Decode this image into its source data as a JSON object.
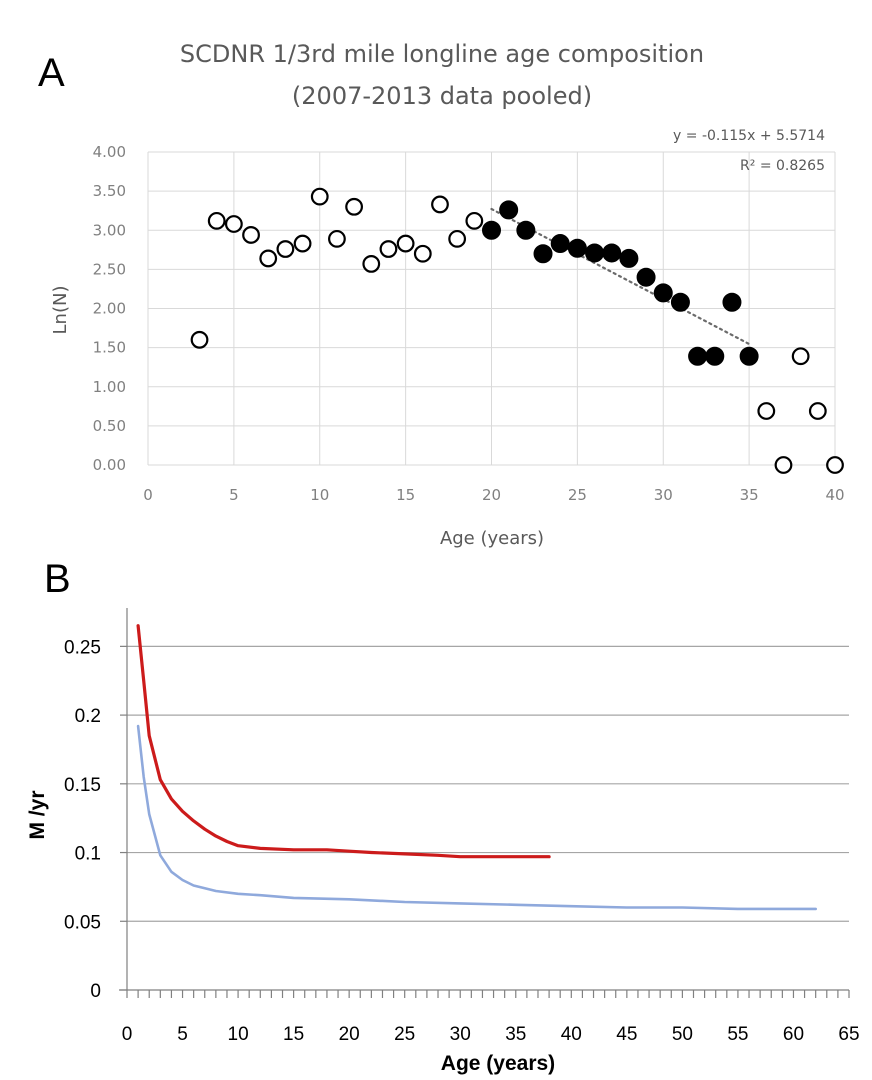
{
  "panel_labels": {
    "a": "A",
    "b": "B"
  },
  "colors": {
    "panel_a_gridline": "#d9d9d9",
    "panel_a_text": "#595959",
    "panel_a_tick_text": "#808080",
    "trendline": "#6b6b6b",
    "panel_b_gridline": "#a6a6a6",
    "red_series": "#cc1b1b",
    "blue_series": "#8fa9dc"
  },
  "chart_data": [
    {
      "type": "scatter",
      "title": "SCDNR 1/3rd mile longline age composition",
      "subtitle": "(2007-2013 data pooled)",
      "xlabel": "Age (years)",
      "ylabel": "Ln(N)",
      "xlim": [
        0,
        40
      ],
      "ylim": [
        0,
        4
      ],
      "x_ticks": [
        0,
        5,
        10,
        15,
        20,
        25,
        30,
        35,
        40
      ],
      "y_ticks": [
        "0.00",
        "0.50",
        "1.00",
        "1.50",
        "2.00",
        "2.50",
        "3.00",
        "3.50",
        "4.00"
      ],
      "grid": true,
      "trendline": {
        "equation": "y = -0.115x + 5.5714",
        "r2_label": "R² = 0.8265",
        "slope": -0.115,
        "intercept": 5.5714,
        "x_range": [
          20,
          35
        ],
        "style": "dotted"
      },
      "series": [
        {
          "marker": "open-circle",
          "points": [
            [
              3,
              1.6
            ],
            [
              4,
              3.12
            ],
            [
              5,
              3.08
            ],
            [
              6,
              2.94
            ],
            [
              7,
              2.64
            ],
            [
              8,
              2.76
            ],
            [
              9,
              2.83
            ],
            [
              10,
              3.43
            ],
            [
              11,
              2.89
            ],
            [
              12,
              3.3
            ],
            [
              13,
              2.57
            ],
            [
              14,
              2.76
            ],
            [
              15,
              2.83
            ],
            [
              16,
              2.7
            ],
            [
              17,
              3.33
            ],
            [
              18,
              2.89
            ],
            [
              19,
              3.12
            ],
            [
              36,
              0.69
            ],
            [
              37,
              0.0
            ],
            [
              38,
              1.39
            ],
            [
              39,
              0.69
            ],
            [
              40,
              0.0
            ]
          ]
        },
        {
          "marker": "filled-circle",
          "points": [
            [
              20,
              3.0
            ],
            [
              21,
              3.26
            ],
            [
              22,
              3.0
            ],
            [
              23,
              2.7
            ],
            [
              24,
              2.83
            ],
            [
              25,
              2.77
            ],
            [
              26,
              2.71
            ],
            [
              27,
              2.71
            ],
            [
              28,
              2.64
            ],
            [
              29,
              2.4
            ],
            [
              30,
              2.2
            ],
            [
              31,
              2.08
            ],
            [
              32,
              1.39
            ],
            [
              33,
              1.39
            ],
            [
              34,
              2.08
            ],
            [
              35,
              1.39
            ]
          ]
        }
      ]
    },
    {
      "type": "line",
      "title": "",
      "xlabel": "Age (years)",
      "ylabel": "M /yr",
      "xlim": [
        0,
        65
      ],
      "ylim": [
        0,
        0.275
      ],
      "x_ticks": [
        0,
        5,
        10,
        15,
        20,
        25,
        30,
        35,
        40,
        45,
        50,
        55,
        60,
        65
      ],
      "y_ticks": [
        "0",
        "0.05",
        "0.1",
        "0.15",
        "0.2",
        "0.25"
      ],
      "grid": true,
      "series": [
        {
          "color": "#cc1b1b",
          "points": [
            [
              1,
              0.265
            ],
            [
              1.5,
              0.225
            ],
            [
              2,
              0.185
            ],
            [
              3,
              0.153
            ],
            [
              4,
              0.139
            ],
            [
              5,
              0.13
            ],
            [
              6,
              0.123
            ],
            [
              7,
              0.117
            ],
            [
              8,
              0.112
            ],
            [
              9,
              0.108
            ],
            [
              10,
              0.105
            ],
            [
              12,
              0.103
            ],
            [
              15,
              0.102
            ],
            [
              18,
              0.102
            ],
            [
              20,
              0.101
            ],
            [
              22,
              0.1
            ],
            [
              25,
              0.099
            ],
            [
              28,
              0.098
            ],
            [
              30,
              0.097
            ],
            [
              35,
              0.097
            ],
            [
              38,
              0.097
            ]
          ]
        },
        {
          "color": "#8fa9dc",
          "points": [
            [
              1,
              0.192
            ],
            [
              1.5,
              0.155
            ],
            [
              2,
              0.128
            ],
            [
              3,
              0.098
            ],
            [
              4,
              0.086
            ],
            [
              5,
              0.08
            ],
            [
              6,
              0.076
            ],
            [
              7,
              0.074
            ],
            [
              8,
              0.072
            ],
            [
              10,
              0.07
            ],
            [
              12,
              0.069
            ],
            [
              15,
              0.067
            ],
            [
              20,
              0.066
            ],
            [
              25,
              0.064
            ],
            [
              30,
              0.063
            ],
            [
              35,
              0.062
            ],
            [
              40,
              0.061
            ],
            [
              45,
              0.06
            ],
            [
              50,
              0.06
            ],
            [
              55,
              0.059
            ],
            [
              62,
              0.059
            ]
          ]
        }
      ]
    }
  ]
}
